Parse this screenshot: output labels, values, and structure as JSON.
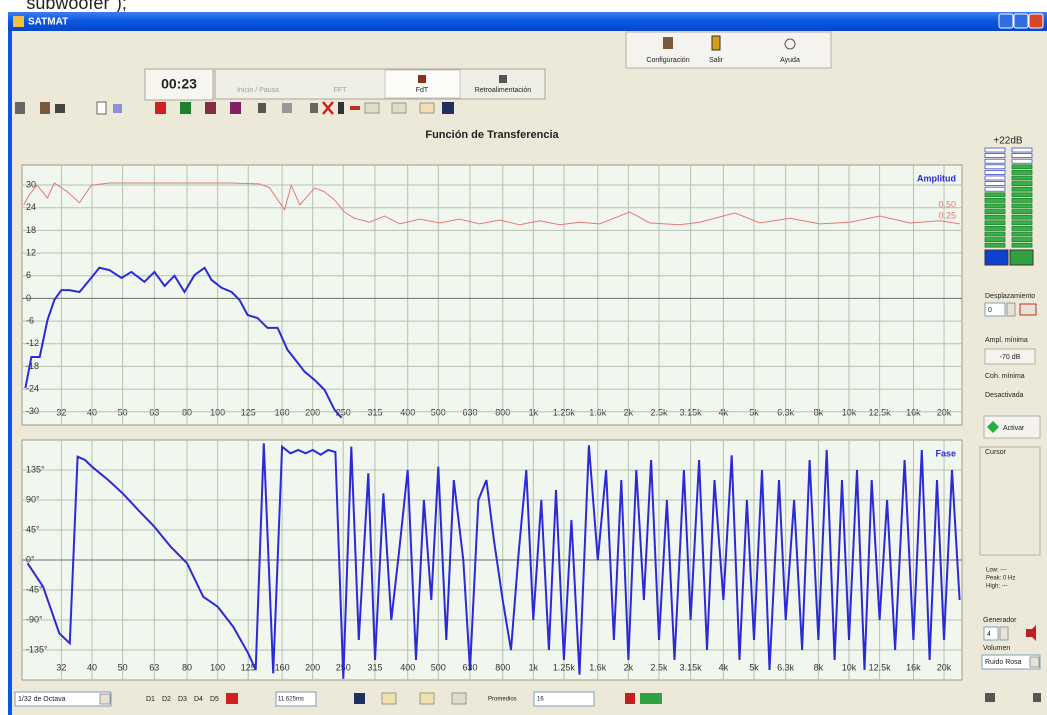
{
  "caption": "\"subwoofer\");",
  "window": {
    "title": "SATMAT"
  },
  "toolbar": {
    "buttons": [
      "Configuración",
      "Salir",
      "Ayuda"
    ],
    "timer": "00:23",
    "tabs": [
      "Inicio / Pausa",
      "FFT",
      "FdT",
      "Retroalimentación"
    ]
  },
  "chart_data": [
    {
      "type": "line",
      "title": "Función de Transferencia",
      "x_scale": "log",
      "grid": true,
      "xlim": [
        24,
        22800
      ],
      "xticks": [
        32,
        40,
        50,
        63,
        80,
        100,
        125,
        160,
        200,
        250,
        315,
        400,
        500,
        630,
        800,
        {
          "value": 1000,
          "label": "1k"
        },
        {
          "value": 1250,
          "label": "1.25k"
        },
        {
          "value": 1600,
          "label": "1.6k"
        },
        {
          "value": 2000,
          "label": "2k"
        },
        {
          "value": 2500,
          "label": "2.5k"
        },
        {
          "value": 3150,
          "label": "3.15k"
        },
        {
          "value": 4000,
          "label": "4k"
        },
        {
          "value": 5000,
          "label": "5k"
        },
        {
          "value": 6300,
          "label": "6.3k"
        },
        {
          "value": 8000,
          "label": "8k"
        },
        {
          "value": 10000,
          "label": "10k"
        },
        {
          "value": 12500,
          "label": "12.5k"
        },
        {
          "value": 16000,
          "label": "16k"
        },
        {
          "value": 20000,
          "label": "20k"
        }
      ],
      "ylim": [
        -33.5,
        35.3
      ],
      "yticks": [
        30,
        24,
        18,
        12,
        6,
        0,
        -6,
        -12,
        -18,
        -24,
        -30
      ],
      "y2lim": [
        0,
        1
      ],
      "y2ticks": [
        {
          "value": 0.5,
          "label": "0.50"
        },
        {
          "value": 0.25,
          "label": "0.25"
        }
      ],
      "series": [
        {
          "name": "Amplitud",
          "color": "#2b2bd6",
          "x": [
            24.6,
            25.7,
            27.3,
            28.9,
            30.4,
            32,
            33.9,
            36.5,
            39.3,
            42.2,
            45.4,
            49.6,
            53.3,
            58.6,
            63.1,
            67.9,
            73,
            78.5,
            84.5,
            90.9,
            95.6,
            102.9,
            110.7,
            117.3,
            124.4,
            133.8,
            143.9,
            154.8,
            166.5,
            176.5,
            188.5,
            202.8,
            218.1,
            234.7,
            247
          ],
          "values": [
            -23.7,
            -15.5,
            -15.5,
            -5.7,
            -0.4,
            2.2,
            2.2,
            1.7,
            4.9,
            8.1,
            7.5,
            5.4,
            7,
            4.4,
            7,
            3.3,
            6,
            1.7,
            6.2,
            8.1,
            4.9,
            2.8,
            1.7,
            -0.4,
            -4.4,
            -5.2,
            -7.8,
            -7.8,
            -13.6,
            -16.3,
            -19.4,
            -21.6,
            -24.2,
            -29.5,
            -31.6
          ]
        },
        {
          "color": "#e67a7a",
          "axis": "y2",
          "x": [
            24.3,
            25.3,
            26.8,
            28.9,
            30.4,
            33.4,
            36.5,
            39.8,
            45.4,
            56.6,
            65.4,
            87.6,
            109,
            136,
            146,
            163,
            171,
            182,
            203,
            218,
            235,
            252,
            271,
            303,
            338,
            377,
            437,
            505,
            584,
            676,
            782,
            905,
            1048,
            1212,
            1403,
            1623,
            2021,
            2339,
            2911,
            3369,
            4349,
            5219,
            6497,
            8084,
            10064,
            12528,
            15594,
            19414,
            22461
          ],
          "values": [
            0.5,
            0.73,
            0.95,
            0.66,
            1.0,
            0.8,
            0.55,
            0.95,
            1.0,
            1.0,
            1.0,
            1.0,
            1.0,
            0.98,
            0.89,
            0.39,
            0.95,
            0.5,
            0.89,
            0.8,
            0.61,
            0.34,
            0.2,
            0.11,
            0.25,
            0.07,
            0.18,
            0.09,
            0.18,
            0.07,
            0.16,
            0.05,
            0.14,
            0.05,
            0.11,
            0.07,
            0.34,
            0.09,
            0.05,
            0.11,
            0.32,
            0.09,
            0.2,
            0.07,
            0.11,
            0.25,
            0.09,
            0.14,
            0.07
          ]
        }
      ]
    },
    {
      "type": "line",
      "x_scale": "log",
      "grid": true,
      "xlim": [
        24,
        22800
      ],
      "xticks": [
        32,
        40,
        50,
        63,
        80,
        100,
        125,
        160,
        200,
        250,
        315,
        400,
        500,
        630,
        800,
        {
          "value": 1000,
          "label": "1k"
        },
        {
          "value": 1250,
          "label": "1.25k"
        },
        {
          "value": 1600,
          "label": "1.6k"
        },
        {
          "value": 2000,
          "label": "2k"
        },
        {
          "value": 2500,
          "label": "2.5k"
        },
        {
          "value": 3150,
          "label": "3.15k"
        },
        {
          "value": 4000,
          "label": "4k"
        },
        {
          "value": 5000,
          "label": "5k"
        },
        {
          "value": 6300,
          "label": "6.3k"
        },
        {
          "value": 8000,
          "label": "8k"
        },
        {
          "value": 10000,
          "label": "10k"
        },
        {
          "value": 12500,
          "label": "12.5k"
        },
        {
          "value": 16000,
          "label": "16k"
        },
        {
          "value": 20000,
          "label": "20k"
        }
      ],
      "ylim": [
        -180,
        180
      ],
      "yticks": [
        {
          "value": 135,
          "label": "135°"
        },
        {
          "value": 90,
          "label": "90°"
        },
        {
          "value": 45,
          "label": "45°"
        },
        {
          "value": 0,
          "label": "0°"
        },
        {
          "value": -45,
          "label": "-45°"
        },
        {
          "value": -90,
          "label": "-90°"
        },
        {
          "value": -135,
          "label": "-135°"
        }
      ],
      "series": [
        {
          "name": "Fase",
          "color": "#2b2bd6",
          "x": [
            25,
            28,
            31.5,
            34,
            36,
            38,
            40,
            45,
            50,
            56,
            63,
            71,
            80,
            90,
            100,
            112,
            125,
            132,
            140,
            150,
            160,
            170,
            180,
            190,
            200,
            212,
            224,
            236,
            250,
            265,
            280,
            300,
            315,
            335,
            355,
            375,
            400,
            425,
            450,
            475,
            500,
            530,
            560,
            600,
            630,
            670,
            710,
            750,
            800,
            850,
            900,
            950,
            1000,
            1060,
            1120,
            1180,
            1250,
            1320,
            1400,
            1500,
            1600,
            1700,
            1800,
            1900,
            2000,
            2120,
            2240,
            2360,
            2500,
            2650,
            2800,
            3000,
            3150,
            3350,
            3550,
            3750,
            4000,
            4250,
            4500,
            4750,
            5000,
            5300,
            5600,
            6000,
            6300,
            6700,
            7100,
            7500,
            8000,
            8500,
            9000,
            9500,
            10000,
            10600,
            11200,
            11800,
            12500,
            13200,
            14000,
            15000,
            16000,
            17000,
            18000,
            19000,
            20000,
            21200,
            22400
          ],
          "values": [
            -5,
            -40,
            -110,
            -125,
            155,
            150,
            140,
            120,
            100,
            75,
            50,
            20,
            -5,
            -55,
            -70,
            -100,
            -140,
            -165,
            175,
            -170,
            170,
            160,
            165,
            160,
            165,
            158,
            165,
            162,
            -178,
            170,
            -120,
            130,
            -150,
            100,
            -90,
            10,
            135,
            -150,
            90,
            -60,
            140,
            -120,
            120,
            0,
            -165,
            90,
            120,
            30,
            -60,
            -135,
            15,
            135,
            -90,
            90,
            -135,
            105,
            -150,
            60,
            -172,
            172,
            0,
            135,
            -120,
            120,
            -150,
            135,
            -60,
            150,
            -120,
            90,
            -150,
            135,
            -90,
            150,
            -135,
            120,
            -60,
            157,
            -150,
            90,
            -120,
            135,
            -165,
            120,
            -90,
            90,
            -135,
            150,
            -120,
            165,
            -150,
            120,
            -120,
            135,
            -165,
            120,
            -90,
            90,
            -135,
            150,
            -120,
            165,
            -150,
            120,
            -120,
            135,
            -60
          ]
        }
      ]
    }
  ],
  "side_panel": {
    "meter_label": "+22dB",
    "offset": {
      "label": "Desplazamiento",
      "value": "0"
    },
    "min_amplitude": {
      "label": "Ampl. mínima",
      "value": "-70 dB"
    },
    "min_coherence": {
      "label": "Coh. mínima",
      "value": "Desactivada"
    },
    "activate": "Activar",
    "cursor": {
      "title": "Cursor",
      "low": "Low: ---",
      "peak": "Peak: 0 Hz",
      "high": "High: ---"
    },
    "generator": {
      "label": "Generador",
      "value": "4",
      "volume_label": "Volumen",
      "signal": "Ruido Rosa"
    }
  },
  "status_bar": {
    "resolution": "1/32 de Octava",
    "presets": [
      "D1",
      "D2",
      "D3",
      "D4",
      "D5"
    ],
    "delay": "11.625ms",
    "averages_label": "Promedios",
    "averages": "16"
  }
}
